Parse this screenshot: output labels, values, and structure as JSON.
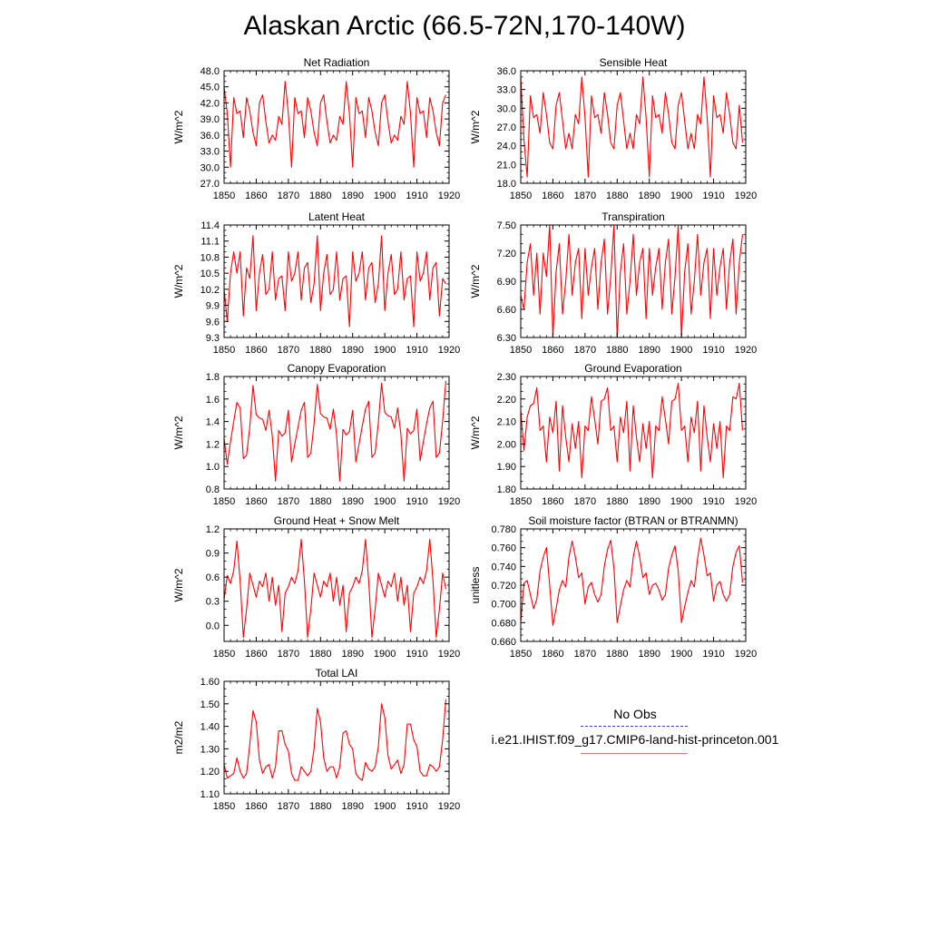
{
  "title": "Alaskan Arctic (66.5-72N,170-140W)",
  "legend": {
    "obs_label": "No Obs",
    "model_label": "i.e21.IHIST.f09_g17.CMIP6-land-hist-princeton.001",
    "obs_color": "#3a3ad0",
    "model_color": "#ff0000"
  },
  "chart_data": [
    {
      "type": "line",
      "title": "Net Radiation",
      "ylabel": "W/m^2",
      "xlabel": "",
      "xlim": [
        1850,
        1920
      ],
      "ylim": [
        27,
        48
      ],
      "xticks": [
        1850,
        1860,
        1870,
        1880,
        1890,
        1900,
        1910,
        1920
      ],
      "xtick_labels": [
        "1850",
        "1860",
        "1870",
        "1880",
        "1890",
        "1900",
        "1910",
        "1920"
      ],
      "yticks": [
        27,
        30,
        33,
        36,
        39,
        42,
        45,
        48
      ],
      "ytick_labels": [
        "27.0",
        "30.0",
        "33.0",
        "36.0",
        "39.0",
        "42.0",
        "45.0",
        "48.0"
      ],
      "x_start": 1850,
      "series": [
        {
          "color": "#ff0000",
          "values": [
            45.0,
            40.0,
            30.0,
            43.0,
            40.0,
            40.5,
            35.5,
            43.0,
            40.5,
            36.5,
            34.0,
            42.0,
            43.5,
            38.5,
            34.5,
            36.0,
            35.0,
            39.5,
            38.0,
            46.0,
            40.0,
            30.0,
            43.0,
            40.0,
            40.5,
            35.5,
            43.0,
            40.5,
            36.5,
            34.0,
            42.0,
            43.5,
            38.5,
            34.5,
            36.0,
            35.0,
            39.5,
            38.0,
            46.0,
            40.0,
            30.0,
            43.0,
            40.0,
            40.5,
            35.5,
            43.0,
            40.5,
            36.5,
            34.0,
            42.0,
            43.5,
            38.5,
            34.5,
            36.0,
            35.0,
            39.5,
            38.0,
            46.0,
            40.0,
            30.0,
            43.0,
            40.0,
            40.5,
            35.5,
            43.0,
            40.5,
            36.5,
            34.0,
            42.0,
            43.5
          ]
        }
      ]
    },
    {
      "type": "line",
      "title": "Sensible Heat",
      "ylabel": "W/m^2",
      "xlabel": "",
      "xlim": [
        1850,
        1920
      ],
      "ylim": [
        18,
        36
      ],
      "xticks": [
        1850,
        1860,
        1870,
        1880,
        1890,
        1900,
        1910,
        1920
      ],
      "xtick_labels": [
        "1850",
        "1860",
        "1870",
        "1880",
        "1890",
        "1900",
        "1910",
        "1920"
      ],
      "yticks": [
        18,
        21,
        24,
        27,
        30,
        33,
        36
      ],
      "ytick_labels": [
        "18.0",
        "21.0",
        "24.0",
        "27.0",
        "30.0",
        "33.0",
        "36.0"
      ],
      "x_start": 1850,
      "series": [
        {
          "color": "#ff0000",
          "values": [
            35.0,
            25.0,
            19.0,
            32.0,
            28.5,
            29.0,
            26.0,
            32.5,
            29.0,
            24.5,
            23.5,
            30.5,
            32.5,
            28.0,
            23.5,
            26.0,
            23.5,
            29.0,
            27.5,
            35.0,
            28.5,
            19.0,
            32.0,
            28.5,
            29.0,
            26.0,
            32.5,
            29.0,
            24.5,
            23.5,
            30.5,
            32.5,
            28.0,
            23.5,
            26.0,
            23.5,
            29.0,
            27.5,
            35.0,
            28.5,
            19.0,
            32.0,
            28.5,
            29.0,
            26.0,
            32.5,
            29.0,
            24.5,
            23.5,
            30.5,
            32.5,
            28.0,
            23.5,
            26.0,
            23.5,
            29.0,
            27.5,
            35.0,
            28.5,
            19.0,
            32.0,
            28.5,
            29.0,
            26.0,
            32.5,
            29.0,
            24.5,
            23.5,
            30.5,
            24.5
          ]
        }
      ]
    },
    {
      "type": "line",
      "title": "Latent Heat",
      "ylabel": "W/m^2",
      "xlabel": "",
      "xlim": [
        1850,
        1920
      ],
      "ylim": [
        9.3,
        11.4
      ],
      "xticks": [
        1850,
        1860,
        1870,
        1880,
        1890,
        1900,
        1910,
        1920
      ],
      "xtick_labels": [
        "1850",
        "1860",
        "1870",
        "1880",
        "1890",
        "1900",
        "1910",
        "1920"
      ],
      "yticks": [
        9.3,
        9.6,
        9.9,
        10.2,
        10.5,
        10.8,
        11.1,
        11.4
      ],
      "ytick_labels": [
        "9.3",
        "9.6",
        "9.9",
        "10.2",
        "10.5",
        "10.8",
        "11.1",
        "11.4"
      ],
      "x_start": 1850,
      "series": [
        {
          "color": "#ff0000",
          "values": [
            10.2,
            9.6,
            10.5,
            10.9,
            10.5,
            10.9,
            9.7,
            10.6,
            10.4,
            11.2,
            9.8,
            10.5,
            10.85,
            10.1,
            10.2,
            10.9,
            10.0,
            10.4,
            10.45,
            9.8,
            10.9,
            10.35,
            10.5,
            10.9,
            10.0,
            10.6,
            10.7,
            9.95,
            10.3,
            11.2,
            9.8,
            10.5,
            10.85,
            10.1,
            10.2,
            10.9,
            10.0,
            10.4,
            10.45,
            9.5,
            10.9,
            10.35,
            10.5,
            10.9,
            10.0,
            10.6,
            10.7,
            9.95,
            10.3,
            11.2,
            9.8,
            10.5,
            10.85,
            10.1,
            10.2,
            10.9,
            10.0,
            10.4,
            10.45,
            9.5,
            10.9,
            10.35,
            10.5,
            10.9,
            10.0,
            10.6,
            10.7,
            9.7,
            10.4,
            10.3
          ]
        }
      ]
    },
    {
      "type": "line",
      "title": "Transpiration",
      "ylabel": "W/m^2",
      "xlabel": "",
      "xlim": [
        1850,
        1920
      ],
      "ylim": [
        6.3,
        7.5
      ],
      "xticks": [
        1850,
        1860,
        1870,
        1880,
        1890,
        1900,
        1910,
        1920
      ],
      "xtick_labels": [
        "1850",
        "1860",
        "1870",
        "1880",
        "1890",
        "1900",
        "1910",
        "1920"
      ],
      "yticks": [
        6.3,
        6.6,
        6.9,
        7.2,
        7.5
      ],
      "ytick_labels": [
        "6.30",
        "6.60",
        "6.90",
        "7.20",
        "7.50"
      ],
      "x_start": 1850,
      "series": [
        {
          "color": "#ff0000",
          "values": [
            6.75,
            6.6,
            7.1,
            7.3,
            6.75,
            7.2,
            6.55,
            7.2,
            6.95,
            7.5,
            6.3,
            7.0,
            7.3,
            6.55,
            6.9,
            7.4,
            6.75,
            7.1,
            7.25,
            6.5,
            7.25,
            6.75,
            7.05,
            7.25,
            6.6,
            7.1,
            7.35,
            6.55,
            6.95,
            7.5,
            6.3,
            7.0,
            7.3,
            6.55,
            6.9,
            7.4,
            6.75,
            7.1,
            7.25,
            6.5,
            7.25,
            6.75,
            7.05,
            7.25,
            6.6,
            7.1,
            7.35,
            6.55,
            6.95,
            7.5,
            6.3,
            7.0,
            7.3,
            6.55,
            6.9,
            7.4,
            6.75,
            7.1,
            7.25,
            6.5,
            7.25,
            6.75,
            7.05,
            7.25,
            6.6,
            7.1,
            7.35,
            6.55,
            7.1,
            7.4
          ]
        }
      ]
    },
    {
      "type": "line",
      "title": "Canopy Evaporation",
      "ylabel": "W/m^2",
      "xlabel": "",
      "xlim": [
        1850,
        1920
      ],
      "ylim": [
        0.8,
        1.8
      ],
      "xticks": [
        1850,
        1860,
        1870,
        1880,
        1890,
        1900,
        1910,
        1920
      ],
      "xtick_labels": [
        "1850",
        "1860",
        "1870",
        "1880",
        "1890",
        "1900",
        "1910",
        "1920"
      ],
      "yticks": [
        0.8,
        1.0,
        1.2,
        1.4,
        1.6,
        1.8
      ],
      "ytick_labels": [
        "0.8",
        "1.0",
        "1.2",
        "1.4",
        "1.6",
        "1.8"
      ],
      "x_start": 1850,
      "series": [
        {
          "color": "#ff0000",
          "values": [
            1.25,
            1.02,
            1.22,
            1.4,
            1.57,
            1.52,
            1.07,
            1.1,
            1.35,
            1.72,
            1.46,
            1.43,
            1.42,
            1.32,
            1.5,
            1.27,
            0.87,
            1.32,
            1.27,
            1.3,
            1.5,
            1.04,
            1.2,
            1.35,
            1.5,
            1.57,
            1.08,
            1.12,
            1.38,
            1.73,
            1.47,
            1.44,
            1.43,
            1.33,
            1.51,
            1.28,
            0.87,
            1.33,
            1.28,
            1.31,
            1.5,
            1.04,
            1.2,
            1.36,
            1.51,
            1.58,
            1.08,
            1.12,
            1.39,
            1.74,
            1.48,
            1.45,
            1.44,
            1.34,
            1.52,
            1.29,
            0.87,
            1.34,
            1.29,
            1.32,
            1.51,
            1.05,
            1.22,
            1.38,
            1.52,
            1.58,
            1.08,
            1.12,
            1.4,
            1.76
          ]
        }
      ]
    },
    {
      "type": "line",
      "title": "Ground Evaporation",
      "ylabel": "W/m^2",
      "xlabel": "",
      "xlim": [
        1850,
        1920
      ],
      "ylim": [
        1.8,
        2.3
      ],
      "xticks": [
        1850,
        1860,
        1870,
        1880,
        1890,
        1900,
        1910,
        1920
      ],
      "xtick_labels": [
        "1850",
        "1860",
        "1870",
        "1880",
        "1890",
        "1900",
        "1910",
        "1920"
      ],
      "yticks": [
        1.8,
        1.9,
        2.0,
        2.1,
        2.2,
        2.3
      ],
      "ytick_labels": [
        "1.80",
        "1.90",
        "2.00",
        "2.10",
        "2.20",
        "2.30"
      ],
      "x_start": 1850,
      "series": [
        {
          "color": "#ff0000",
          "values": [
            2.15,
            1.97,
            2.12,
            2.17,
            2.18,
            2.25,
            2.06,
            2.08,
            1.92,
            2.12,
            2.05,
            2.19,
            1.88,
            2.17,
            2.03,
            1.92,
            2.09,
            1.98,
            2.1,
            1.85,
            2.08,
            2.06,
            2.21,
            2.11,
            2.0,
            2.19,
            2.2,
            2.25,
            2.06,
            2.08,
            1.92,
            2.12,
            2.05,
            2.19,
            1.88,
            2.17,
            2.03,
            1.92,
            2.09,
            1.98,
            2.1,
            1.85,
            2.08,
            2.06,
            2.21,
            2.11,
            2.0,
            2.19,
            2.2,
            2.27,
            2.06,
            2.08,
            1.92,
            2.12,
            2.05,
            2.19,
            1.88,
            2.17,
            2.03,
            1.92,
            2.09,
            1.98,
            2.1,
            1.85,
            2.08,
            2.06,
            2.21,
            2.2,
            2.27,
            2.06
          ]
        }
      ]
    },
    {
      "type": "line",
      "title": "Ground Heat + Snow Melt",
      "ylabel": "W/m^2",
      "xlabel": "",
      "xlim": [
        1850,
        1920
      ],
      "ylim": [
        -0.2,
        1.2
      ],
      "xticks": [
        1850,
        1860,
        1870,
        1880,
        1890,
        1900,
        1910,
        1920
      ],
      "xtick_labels": [
        "1850",
        "1860",
        "1870",
        "1880",
        "1890",
        "1900",
        "1910",
        "1920"
      ],
      "yticks": [
        0.0,
        0.3,
        0.6,
        0.9,
        1.2
      ],
      "ytick_labels": [
        "0.0",
        "0.3",
        "0.6",
        "0.9",
        "1.2"
      ],
      "x_start": 1850,
      "series": [
        {
          "color": "#ff0000",
          "values": [
            0.32,
            0.62,
            0.52,
            0.68,
            1.05,
            0.55,
            -0.15,
            0.2,
            0.65,
            0.5,
            0.35,
            0.55,
            0.48,
            0.65,
            0.3,
            0.6,
            0.25,
            0.5,
            -0.08,
            0.4,
            0.48,
            0.6,
            0.52,
            0.68,
            1.07,
            0.55,
            -0.15,
            0.2,
            0.65,
            0.5,
            0.35,
            0.55,
            0.48,
            0.65,
            0.3,
            0.6,
            0.25,
            0.5,
            -0.08,
            0.4,
            0.48,
            0.6,
            0.52,
            0.68,
            1.07,
            0.55,
            -0.15,
            0.2,
            0.65,
            0.5,
            0.35,
            0.55,
            0.48,
            0.65,
            0.3,
            0.6,
            0.25,
            0.5,
            -0.08,
            0.4,
            0.48,
            0.6,
            0.52,
            0.68,
            1.07,
            0.55,
            -0.15,
            0.2,
            0.65,
            0.45
          ]
        }
      ]
    },
    {
      "type": "line",
      "title": "Soil moisture factor (BTRAN or BTRANMN)",
      "ylabel": "unitless",
      "xlabel": "",
      "xlim": [
        1850,
        1920
      ],
      "ylim": [
        0.66,
        0.78
      ],
      "xticks": [
        1850,
        1860,
        1870,
        1880,
        1890,
        1900,
        1910,
        1920
      ],
      "xtick_labels": [
        "1850",
        "1860",
        "1870",
        "1880",
        "1890",
        "1900",
        "1910",
        "1920"
      ],
      "yticks": [
        0.66,
        0.68,
        0.7,
        0.72,
        0.74,
        0.76,
        0.78
      ],
      "ytick_labels": [
        "0.660",
        "0.680",
        "0.700",
        "0.720",
        "0.740",
        "0.760",
        "0.780"
      ],
      "x_start": 1850,
      "series": [
        {
          "color": "#ff0000",
          "values": [
            0.68,
            0.722,
            0.725,
            0.71,
            0.695,
            0.705,
            0.735,
            0.75,
            0.76,
            0.72,
            0.677,
            0.695,
            0.715,
            0.725,
            0.718,
            0.75,
            0.767,
            0.75,
            0.728,
            0.733,
            0.7,
            0.718,
            0.723,
            0.71,
            0.702,
            0.71,
            0.74,
            0.758,
            0.768,
            0.738,
            0.68,
            0.698,
            0.715,
            0.725,
            0.718,
            0.75,
            0.767,
            0.75,
            0.728,
            0.733,
            0.71,
            0.72,
            0.722,
            0.715,
            0.704,
            0.71,
            0.738,
            0.752,
            0.762,
            0.735,
            0.68,
            0.697,
            0.712,
            0.725,
            0.718,
            0.748,
            0.77,
            0.752,
            0.73,
            0.733,
            0.703,
            0.72,
            0.724,
            0.71,
            0.703,
            0.71,
            0.74,
            0.755,
            0.762,
            0.723
          ]
        }
      ]
    },
    {
      "type": "line",
      "title": "Total LAI",
      "ylabel": "m2/m2",
      "xlabel": "",
      "xlim": [
        1850,
        1920
      ],
      "ylim": [
        1.1,
        1.6
      ],
      "xticks": [
        1850,
        1860,
        1870,
        1880,
        1890,
        1900,
        1910,
        1920
      ],
      "xtick_labels": [
        "1850",
        "1860",
        "1870",
        "1880",
        "1890",
        "1900",
        "1910",
        "1920"
      ],
      "yticks": [
        1.1,
        1.2,
        1.3,
        1.4,
        1.5,
        1.6
      ],
      "ytick_labels": [
        "1.10",
        "1.20",
        "1.30",
        "1.40",
        "1.50",
        "1.60"
      ],
      "x_start": 1850,
      "series": [
        {
          "color": "#ff0000",
          "values": [
            1.23,
            1.17,
            1.18,
            1.19,
            1.26,
            1.2,
            1.17,
            1.19,
            1.32,
            1.47,
            1.42,
            1.25,
            1.19,
            1.22,
            1.23,
            1.17,
            1.22,
            1.38,
            1.38,
            1.32,
            1.29,
            1.19,
            1.16,
            1.16,
            1.22,
            1.2,
            1.18,
            1.2,
            1.3,
            1.48,
            1.42,
            1.26,
            1.2,
            1.22,
            1.22,
            1.17,
            1.22,
            1.37,
            1.38,
            1.32,
            1.3,
            1.19,
            1.17,
            1.16,
            1.24,
            1.21,
            1.2,
            1.22,
            1.31,
            1.5,
            1.44,
            1.27,
            1.21,
            1.23,
            1.25,
            1.19,
            1.23,
            1.41,
            1.41,
            1.34,
            1.31,
            1.2,
            1.18,
            1.18,
            1.23,
            1.22,
            1.2,
            1.22,
            1.34,
            1.52
          ]
        }
      ]
    }
  ]
}
